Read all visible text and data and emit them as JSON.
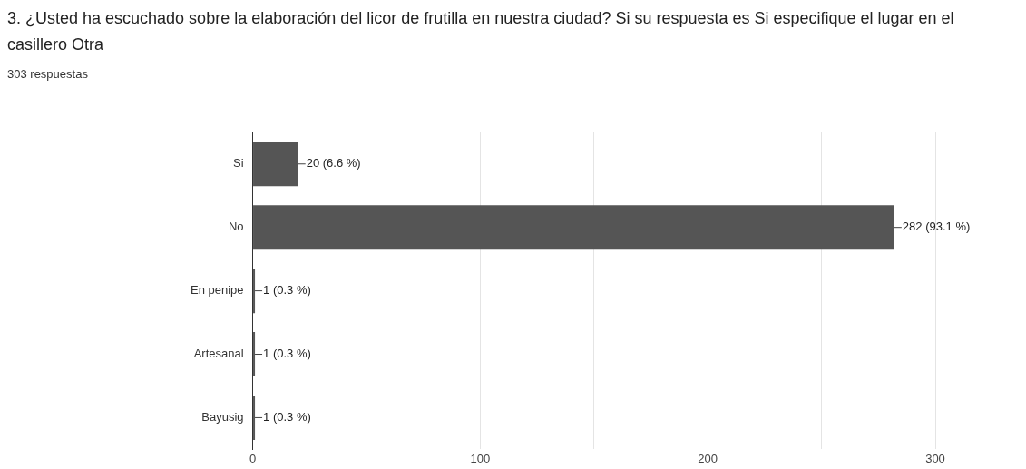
{
  "chart_data": {
    "type": "bar",
    "orientation": "horizontal",
    "title": "3. ¿Usted ha escuchado sobre la elaboración del licor de frutilla en nuestra ciudad? Si su respuesta es Si especifique el lugar en el casillero Otra",
    "subtitle": "303 respuestas",
    "categories": [
      "Si",
      "No",
      "En penipe",
      "Artesanal",
      "Bayusig"
    ],
    "values": [
      20,
      282,
      1,
      1,
      1
    ],
    "value_labels": [
      "20 (6.6 %)",
      "282 (93.1 %)",
      "1 (0.3 %)",
      "1 (0.3 %)",
      "1 (0.3 %)"
    ],
    "color": "#555555",
    "xlim": [
      0,
      300
    ],
    "xticks": [
      0,
      {
        "value": 50,
        "label": null
      },
      100,
      {
        "value": 150,
        "label": null
      },
      200,
      {
        "value": 250,
        "label": null
      },
      300
    ],
    "grid": "x",
    "legend": false
  }
}
